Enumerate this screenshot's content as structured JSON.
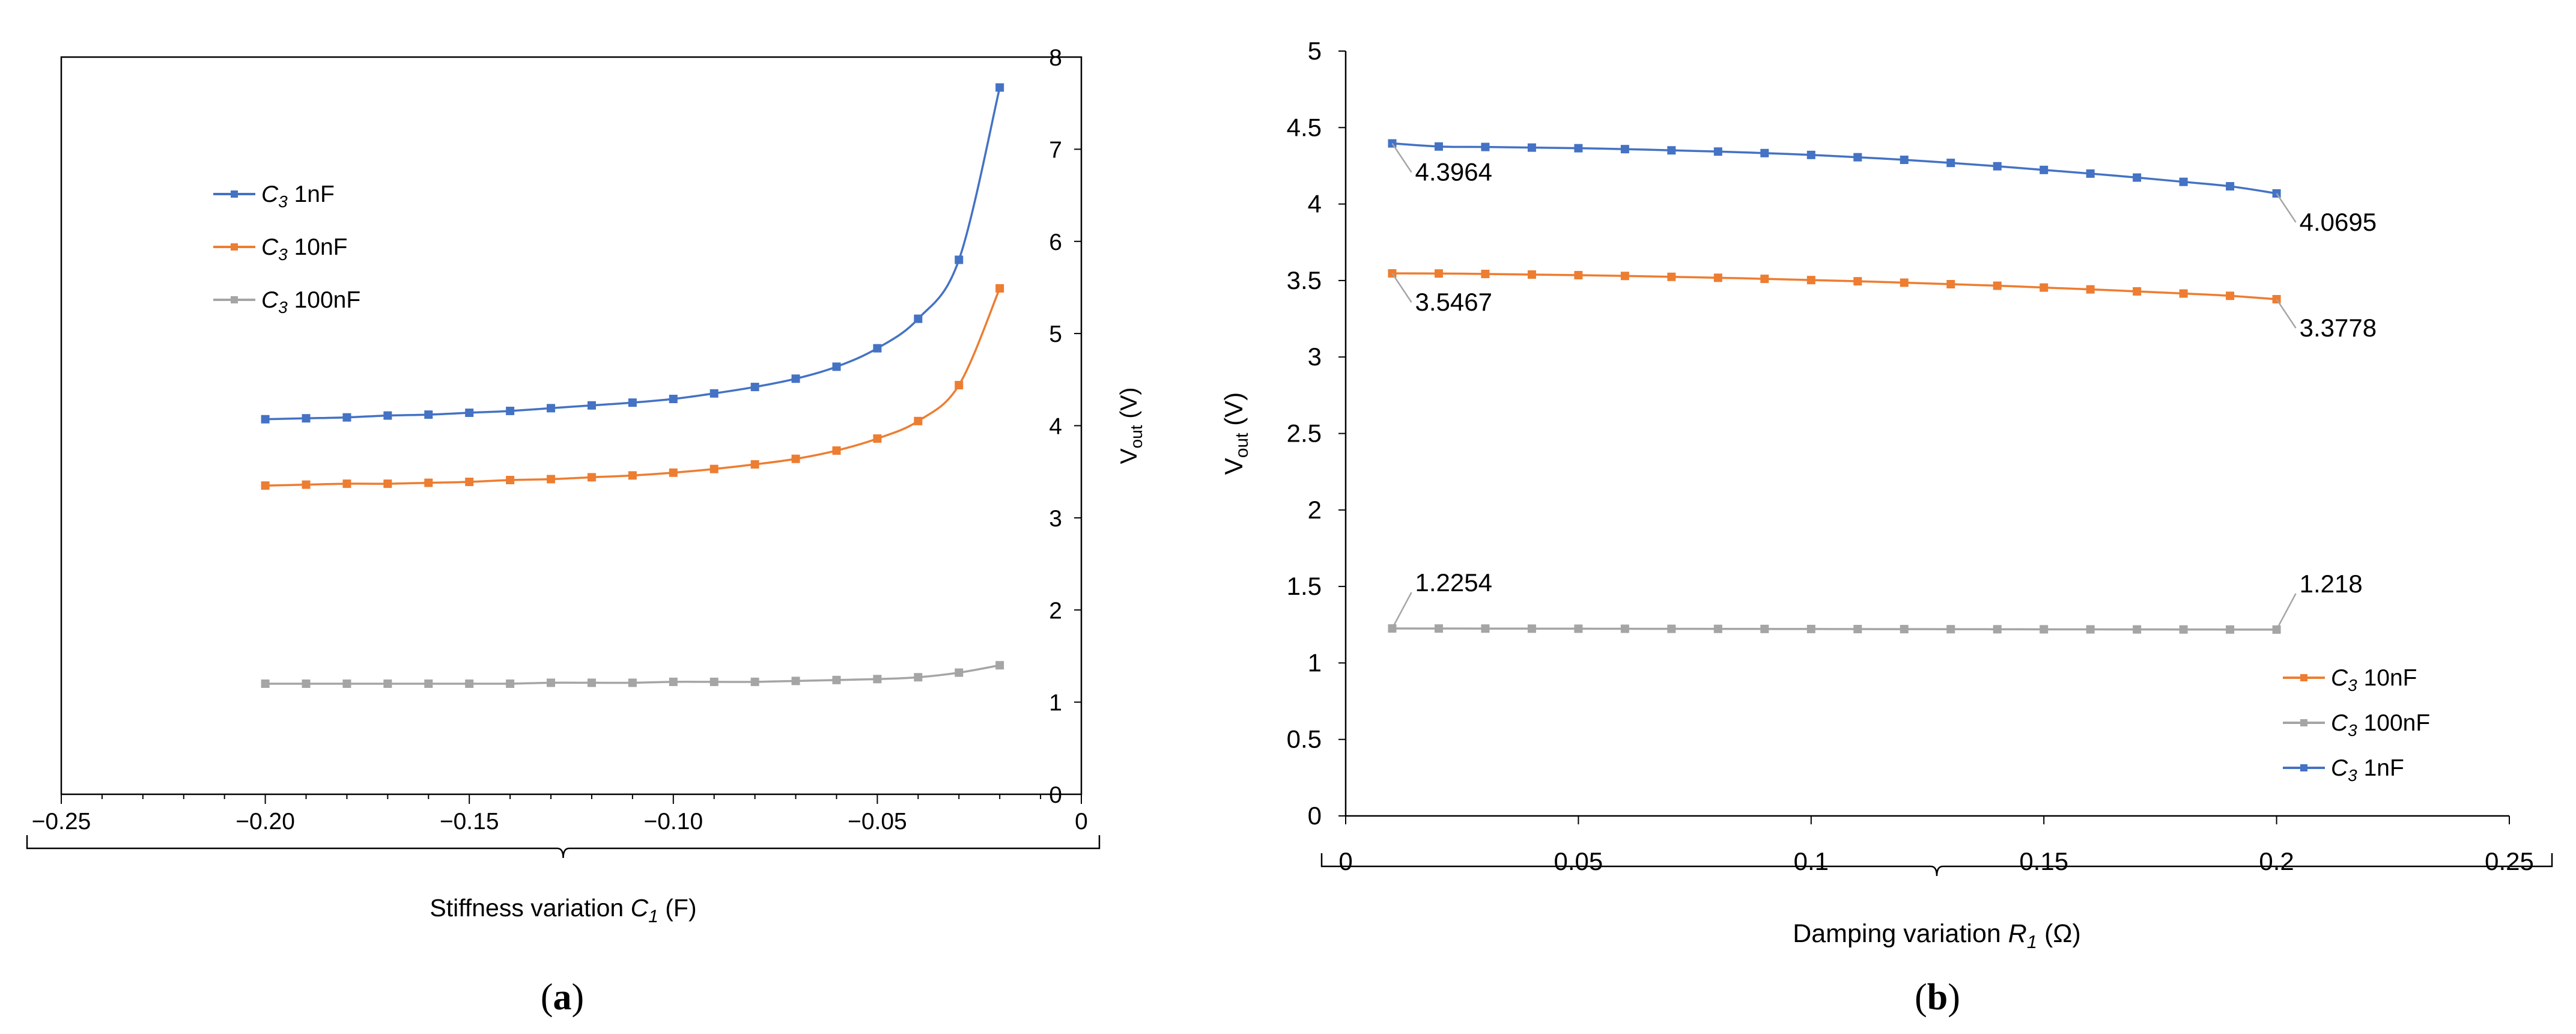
{
  "chart_data": [
    {
      "panel": "(a)",
      "type": "line",
      "xlabel_prefix": "Stiffness variation",
      "xlabel_var": "C",
      "xlabel_sub": "1",
      "xlabel_unit": "(F)",
      "ylabel_main": "V",
      "ylabel_sub": "out",
      "ylabel_unit": "(V)",
      "xlim": [
        -0.25,
        0
      ],
      "ylim": [
        0,
        8
      ],
      "xticks": [
        -0.25,
        -0.2,
        -0.15,
        -0.1,
        -0.05,
        0
      ],
      "xtick_labels": [
        "−0.25",
        "−0.20",
        "−0.15",
        "−0.10",
        "−0.05",
        "0"
      ],
      "yticks": [
        0,
        1,
        2,
        3,
        4,
        5,
        6,
        7,
        8
      ],
      "ytick_labels": [
        "0",
        "1",
        "2",
        "3",
        "4",
        "5",
        "6",
        "7",
        "8"
      ],
      "legend_position": "upper-left",
      "x": [
        -0.2,
        -0.19,
        -0.18,
        -0.17,
        -0.16,
        -0.15,
        -0.14,
        -0.13,
        -0.12,
        -0.11,
        -0.1,
        -0.09,
        -0.08,
        -0.07,
        -0.06,
        -0.05,
        -0.04,
        -0.03,
        -0.02
      ],
      "series": [
        {
          "name_var": "C",
          "name_sub": "3",
          "name_rest": " 1nF",
          "color": "#4472C4",
          "values": [
            4.07,
            4.08,
            4.09,
            4.11,
            4.12,
            4.14,
            4.16,
            4.19,
            4.22,
            4.25,
            4.29,
            4.35,
            4.42,
            4.51,
            4.64,
            4.84,
            5.16,
            5.8,
            7.67
          ]
        },
        {
          "name_var": "C",
          "name_sub": "3",
          "name_rest": " 10nF",
          "color": "#ED7D31",
          "values": [
            3.35,
            3.36,
            3.37,
            3.37,
            3.38,
            3.39,
            3.41,
            3.42,
            3.44,
            3.46,
            3.49,
            3.53,
            3.58,
            3.64,
            3.73,
            3.86,
            4.05,
            4.44,
            5.49
          ]
        },
        {
          "name_var": "C",
          "name_sub": "3",
          "name_rest": " 100nF",
          "color": "#A5A5A5",
          "values": [
            1.2,
            1.2,
            1.2,
            1.2,
            1.2,
            1.2,
            1.2,
            1.21,
            1.21,
            1.21,
            1.22,
            1.22,
            1.22,
            1.23,
            1.24,
            1.25,
            1.27,
            1.32,
            1.4
          ]
        }
      ]
    },
    {
      "panel": "(b)",
      "type": "line",
      "xlabel_prefix": "Damping variation",
      "xlabel_var": "R",
      "xlabel_sub": "1",
      "xlabel_unit": "(Ω)",
      "ylabel_main": "V",
      "ylabel_sub": "out",
      "ylabel_unit": "(V)",
      "xlim": [
        0,
        0.25
      ],
      "ylim": [
        0,
        5
      ],
      "xticks": [
        0,
        0.05,
        0.1,
        0.15,
        0.2,
        0.25
      ],
      "xtick_labels": [
        "0",
        "0.05",
        "0.1",
        "0.15",
        "0.2",
        "0.25"
      ],
      "yticks": [
        0,
        0.5,
        1,
        1.5,
        2,
        2.5,
        3,
        3.5,
        4,
        4.5,
        5
      ],
      "ytick_labels": [
        "0",
        "0.5",
        "1",
        "1.5",
        "2",
        "2.5",
        "3",
        "3.5",
        "4",
        "4.5",
        "5"
      ],
      "legend_position": "lower-right",
      "x": [
        0.01,
        0.02,
        0.03,
        0.04,
        0.05,
        0.06,
        0.07,
        0.08,
        0.09,
        0.1,
        0.11,
        0.12,
        0.13,
        0.14,
        0.15,
        0.16,
        0.17,
        0.18,
        0.19,
        0.2
      ],
      "series": [
        {
          "name_var": "C",
          "name_sub": "3",
          "name_rest": " 10nF",
          "color": "#ED7D31",
          "values": [
            3.5467,
            3.546,
            3.543,
            3.539,
            3.535,
            3.53,
            3.524,
            3.518,
            3.511,
            3.503,
            3.495,
            3.486,
            3.476,
            3.466,
            3.454,
            3.442,
            3.429,
            3.415,
            3.4,
            3.3778
          ]
        },
        {
          "name_var": "C",
          "name_sub": "3",
          "name_rest": " 100nF",
          "color": "#A5A5A5",
          "values": [
            1.2254,
            1.225,
            1.2246,
            1.2242,
            1.2238,
            1.2234,
            1.223,
            1.2226,
            1.2222,
            1.2218,
            1.2214,
            1.221,
            1.2206,
            1.2202,
            1.2198,
            1.2194,
            1.219,
            1.2187,
            1.2183,
            1.218
          ]
        },
        {
          "name_var": "C",
          "name_sub": "3",
          "name_rest": " 1nF",
          "color": "#4472C4",
          "values": [
            4.3964,
            4.376,
            4.373,
            4.369,
            4.365,
            4.359,
            4.351,
            4.343,
            4.333,
            4.321,
            4.306,
            4.289,
            4.269,
            4.247,
            4.223,
            4.199,
            4.173,
            4.145,
            4.116,
            4.0695
          ]
        }
      ],
      "annotations": [
        {
          "text": "4.3964",
          "series": 2,
          "point": 0,
          "side": "below-right"
        },
        {
          "text": "4.0695",
          "series": 2,
          "point": 19,
          "side": "below-right"
        },
        {
          "text": "3.5467",
          "series": 0,
          "point": 0,
          "side": "below-right"
        },
        {
          "text": "3.3778",
          "series": 0,
          "point": 19,
          "side": "below-right"
        },
        {
          "text": "1.2254",
          "series": 1,
          "point": 0,
          "side": "above-right"
        },
        {
          "text": "1.218",
          "series": 1,
          "point": 19,
          "side": "above-right"
        }
      ]
    }
  ]
}
